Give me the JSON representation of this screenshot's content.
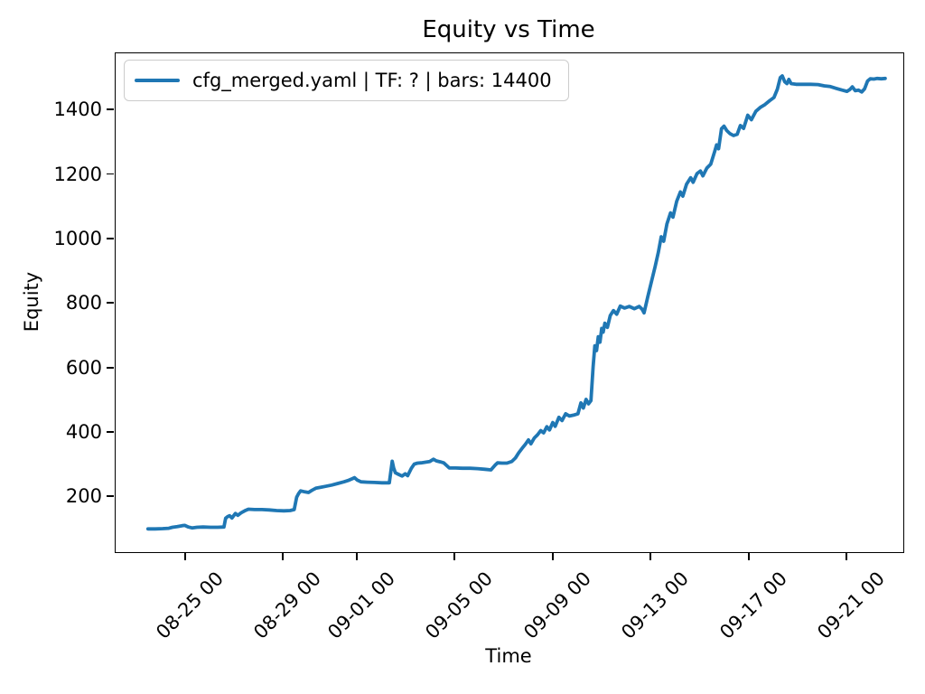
{
  "chart_data": {
    "type": "line",
    "title": "Equity vs Time",
    "xlabel": "Time",
    "ylabel": "Equity",
    "grid": false,
    "legend_position": "upper left",
    "x_unit": "days since 08-23 00:00 (ticks shown as MM-DD HH)",
    "xlim": [
      -0.87,
      31.28
    ],
    "ylim": [
      30,
      1577
    ],
    "x_ticks": [
      {
        "day": 2,
        "label": "08-25 00"
      },
      {
        "day": 6,
        "label": "08-29 00"
      },
      {
        "day": 9,
        "label": "09-01 00"
      },
      {
        "day": 13,
        "label": "09-05 00"
      },
      {
        "day": 17,
        "label": "09-09 00"
      },
      {
        "day": 21,
        "label": "09-13 00"
      },
      {
        "day": 25,
        "label": "09-17 00"
      },
      {
        "day": 29,
        "label": "09-21 00"
      }
    ],
    "y_ticks": [
      200,
      400,
      600,
      800,
      1000,
      1200,
      1400
    ],
    "series": [
      {
        "name": "cfg_merged.yaml | TF: ? | bars: 14400",
        "color": "#1f77b4",
        "linewidth": 3.8,
        "points": [
          [
            0.45,
            102
          ],
          [
            0.75,
            102
          ],
          [
            1.05,
            103
          ],
          [
            1.3,
            104
          ],
          [
            1.45,
            107
          ],
          [
            1.65,
            109
          ],
          [
            1.85,
            112
          ],
          [
            1.95,
            113
          ],
          [
            2.1,
            108
          ],
          [
            2.25,
            105
          ],
          [
            2.45,
            107
          ],
          [
            2.7,
            108
          ],
          [
            3.0,
            107
          ],
          [
            3.3,
            107
          ],
          [
            3.55,
            108
          ],
          [
            3.62,
            135
          ],
          [
            3.7,
            140
          ],
          [
            3.78,
            143
          ],
          [
            3.88,
            136
          ],
          [
            4.02,
            150
          ],
          [
            4.12,
            144
          ],
          [
            4.25,
            152
          ],
          [
            4.4,
            158
          ],
          [
            4.55,
            163
          ],
          [
            4.8,
            162
          ],
          [
            5.1,
            162
          ],
          [
            5.4,
            161
          ],
          [
            5.7,
            159
          ],
          [
            6.0,
            158
          ],
          [
            6.25,
            159
          ],
          [
            6.42,
            162
          ],
          [
            6.52,
            200
          ],
          [
            6.6,
            212
          ],
          [
            6.68,
            220
          ],
          [
            6.85,
            217
          ],
          [
            7.0,
            215
          ],
          [
            7.15,
            222
          ],
          [
            7.3,
            228
          ],
          [
            7.5,
            231
          ],
          [
            7.7,
            234
          ],
          [
            7.95,
            238
          ],
          [
            8.2,
            243
          ],
          [
            8.45,
            248
          ],
          [
            8.65,
            253
          ],
          [
            8.8,
            258
          ],
          [
            8.88,
            261
          ],
          [
            9.0,
            253
          ],
          [
            9.15,
            248
          ],
          [
            9.4,
            247
          ],
          [
            9.7,
            246
          ],
          [
            10.0,
            245
          ],
          [
            10.3,
            245
          ],
          [
            10.42,
            312
          ],
          [
            10.48,
            291
          ],
          [
            10.55,
            276
          ],
          [
            10.68,
            271
          ],
          [
            10.82,
            266
          ],
          [
            10.95,
            273
          ],
          [
            11.05,
            267
          ],
          [
            11.2,
            290
          ],
          [
            11.32,
            303
          ],
          [
            11.45,
            306
          ],
          [
            11.6,
            307
          ],
          [
            11.8,
            309
          ],
          [
            11.95,
            311
          ],
          [
            12.1,
            318
          ],
          [
            12.22,
            313
          ],
          [
            12.38,
            310
          ],
          [
            12.52,
            307
          ],
          [
            12.65,
            298
          ],
          [
            12.75,
            291
          ],
          [
            13.0,
            291
          ],
          [
            13.3,
            290
          ],
          [
            13.6,
            290
          ],
          [
            13.9,
            289
          ],
          [
            14.2,
            287
          ],
          [
            14.45,
            285
          ],
          [
            14.62,
            300
          ],
          [
            14.72,
            307
          ],
          [
            14.9,
            306
          ],
          [
            15.1,
            306
          ],
          [
            15.3,
            311
          ],
          [
            15.45,
            322
          ],
          [
            15.58,
            338
          ],
          [
            15.72,
            352
          ],
          [
            15.85,
            364
          ],
          [
            15.98,
            378
          ],
          [
            16.08,
            366
          ],
          [
            16.22,
            384
          ],
          [
            16.35,
            394
          ],
          [
            16.48,
            407
          ],
          [
            16.6,
            400
          ],
          [
            16.73,
            419
          ],
          [
            16.84,
            409
          ],
          [
            16.97,
            432
          ],
          [
            17.07,
            420
          ],
          [
            17.22,
            448
          ],
          [
            17.35,
            438
          ],
          [
            17.5,
            459
          ],
          [
            17.65,
            452
          ],
          [
            17.82,
            455
          ],
          [
            18.0,
            459
          ],
          [
            18.12,
            493
          ],
          [
            18.22,
            477
          ],
          [
            18.33,
            504
          ],
          [
            18.43,
            490
          ],
          [
            18.53,
            500
          ],
          [
            18.62,
            605
          ],
          [
            18.69,
            670
          ],
          [
            18.76,
            655
          ],
          [
            18.83,
            698
          ],
          [
            18.9,
            681
          ],
          [
            18.97,
            724
          ],
          [
            19.03,
            712
          ],
          [
            19.1,
            740
          ],
          [
            19.2,
            727
          ],
          [
            19.32,
            764
          ],
          [
            19.45,
            779
          ],
          [
            19.58,
            768
          ],
          [
            19.73,
            793
          ],
          [
            19.9,
            787
          ],
          [
            20.1,
            792
          ],
          [
            20.3,
            785
          ],
          [
            20.5,
            792
          ],
          [
            20.62,
            783
          ],
          [
            20.7,
            772
          ],
          [
            20.85,
            822
          ],
          [
            21.0,
            869
          ],
          [
            21.15,
            915
          ],
          [
            21.28,
            960
          ],
          [
            21.4,
            1008
          ],
          [
            21.5,
            994
          ],
          [
            21.63,
            1048
          ],
          [
            21.78,
            1082
          ],
          [
            21.88,
            1069
          ],
          [
            22.03,
            1118
          ],
          [
            22.18,
            1147
          ],
          [
            22.28,
            1134
          ],
          [
            22.43,
            1171
          ],
          [
            22.6,
            1191
          ],
          [
            22.7,
            1177
          ],
          [
            22.86,
            1204
          ],
          [
            23.0,
            1212
          ],
          [
            23.1,
            1197
          ],
          [
            23.26,
            1221
          ],
          [
            23.42,
            1233
          ],
          [
            23.58,
            1273
          ],
          [
            23.66,
            1293
          ],
          [
            23.74,
            1281
          ],
          [
            23.86,
            1343
          ],
          [
            23.96,
            1351
          ],
          [
            24.07,
            1338
          ],
          [
            24.2,
            1328
          ],
          [
            24.35,
            1322
          ],
          [
            24.5,
            1326
          ],
          [
            24.63,
            1353
          ],
          [
            24.76,
            1344
          ],
          [
            24.93,
            1385
          ],
          [
            25.08,
            1371
          ],
          [
            25.26,
            1397
          ],
          [
            25.44,
            1409
          ],
          [
            25.63,
            1418
          ],
          [
            25.82,
            1430
          ],
          [
            26.0,
            1440
          ],
          [
            26.14,
            1466
          ],
          [
            26.26,
            1502
          ],
          [
            26.34,
            1507
          ],
          [
            26.44,
            1489
          ],
          [
            26.53,
            1483
          ],
          [
            26.61,
            1496
          ],
          [
            26.7,
            1483
          ],
          [
            26.9,
            1481
          ],
          [
            27.2,
            1481
          ],
          [
            27.5,
            1481
          ],
          [
            27.8,
            1480
          ],
          [
            28.05,
            1476
          ],
          [
            28.3,
            1474
          ],
          [
            28.55,
            1468
          ],
          [
            28.78,
            1463
          ],
          [
            28.98,
            1459
          ],
          [
            29.1,
            1465
          ],
          [
            29.2,
            1473
          ],
          [
            29.32,
            1461
          ],
          [
            29.45,
            1463
          ],
          [
            29.58,
            1457
          ],
          [
            29.7,
            1467
          ],
          [
            29.82,
            1491
          ],
          [
            29.93,
            1498
          ],
          [
            30.08,
            1497
          ],
          [
            30.22,
            1499
          ],
          [
            30.38,
            1498
          ],
          [
            30.54,
            1499
          ]
        ]
      }
    ]
  },
  "colors": {
    "line": "#1f77b4",
    "axes": "#000000",
    "legend_border": "#cccccc",
    "background": "#ffffff"
  }
}
